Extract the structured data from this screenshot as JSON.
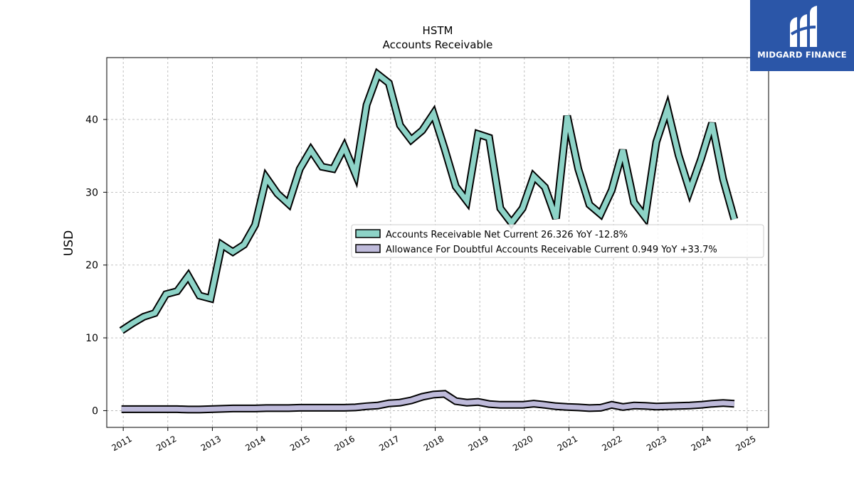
{
  "chart_data": {
    "type": "line",
    "title": "HSTM",
    "subtitle": "Accounts Receivable",
    "ylabel": "USD",
    "xlim": [
      2010.63,
      2025.48
    ],
    "ylim": [
      -2.3,
      48.5
    ],
    "yticks": [
      0,
      10,
      20,
      30,
      40
    ],
    "xticks": [
      "2011",
      "2012",
      "2013",
      "2014",
      "2015",
      "2016",
      "2017",
      "2018",
      "2019",
      "2020",
      "2021",
      "2022",
      "2023",
      "2024",
      "2025"
    ],
    "grid": true,
    "legend_placement": "center-right",
    "series": [
      {
        "name": "Accounts Receivable Net Current",
        "legend_label": "Accounts Receivable Net Current  26.326 YoY -12.8%",
        "color": "#8dd3c7",
        "x": [
          2010.96,
          2011.21,
          2011.46,
          2011.71,
          2011.96,
          2012.21,
          2012.46,
          2012.71,
          2012.96,
          2013.21,
          2013.46,
          2013.71,
          2013.96,
          2014.21,
          2014.46,
          2014.71,
          2014.96,
          2015.21,
          2015.46,
          2015.71,
          2015.96,
          2016.21,
          2016.46,
          2016.71,
          2016.96,
          2017.21,
          2017.46,
          2017.71,
          2017.96,
          2018.21,
          2018.46,
          2018.71,
          2018.96,
          2019.21,
          2019.46,
          2019.71,
          2019.96,
          2020.21,
          2020.46,
          2020.71,
          2020.96,
          2021.21,
          2021.46,
          2021.71,
          2021.96,
          2022.21,
          2022.46,
          2022.71,
          2022.96,
          2023.21,
          2023.46,
          2023.71,
          2023.96,
          2024.21,
          2024.46,
          2024.71
        ],
        "values": [
          11.0,
          12.0,
          12.9,
          13.4,
          16.0,
          16.4,
          18.5,
          15.8,
          15.4,
          22.8,
          21.8,
          22.8,
          25.5,
          32.0,
          29.8,
          28.4,
          33.2,
          35.8,
          33.5,
          33.2,
          36.2,
          32.5,
          42.0,
          46.2,
          45.0,
          39.2,
          37.2,
          38.5,
          40.8,
          36.0,
          30.8,
          28.8,
          38.0,
          37.5,
          27.8,
          25.8,
          27.8,
          32.2,
          30.7,
          26.4,
          40.5,
          33.2,
          28.3,
          27.0,
          30.3,
          35.8,
          28.6,
          26.6,
          36.9,
          41.5,
          35.1,
          30.2,
          34.5,
          39.5,
          31.8,
          26.3
        ]
      },
      {
        "name": "Allowance For Doubtful Accounts Receivable Current",
        "legend_label": "Allowance For Doubtful Accounts Receivable Current  0.949 YoY +33.7%",
        "color": "#bebada",
        "x": [
          2010.96,
          2011.21,
          2011.46,
          2011.71,
          2011.96,
          2012.21,
          2012.46,
          2012.71,
          2012.96,
          2013.21,
          2013.46,
          2013.71,
          2013.96,
          2014.21,
          2014.46,
          2014.71,
          2014.96,
          2015.21,
          2015.46,
          2015.71,
          2015.96,
          2016.21,
          2016.46,
          2016.71,
          2016.96,
          2017.21,
          2017.46,
          2017.71,
          2017.96,
          2018.21,
          2018.46,
          2018.71,
          2018.96,
          2019.21,
          2019.46,
          2019.71,
          2019.96,
          2020.21,
          2020.46,
          2020.71,
          2020.96,
          2021.21,
          2021.46,
          2021.71,
          2021.96,
          2022.21,
          2022.46,
          2022.71,
          2022.96,
          2023.21,
          2023.46,
          2023.71,
          2023.96,
          2024.21,
          2024.46,
          2024.71
        ],
        "values": [
          0.2,
          0.2,
          0.2,
          0.2,
          0.2,
          0.2,
          0.15,
          0.15,
          0.2,
          0.25,
          0.3,
          0.3,
          0.3,
          0.35,
          0.35,
          0.35,
          0.4,
          0.4,
          0.4,
          0.4,
          0.4,
          0.45,
          0.6,
          0.7,
          1.0,
          1.1,
          1.4,
          1.9,
          2.2,
          2.3,
          1.3,
          1.1,
          1.2,
          0.9,
          0.8,
          0.8,
          0.8,
          0.95,
          0.8,
          0.6,
          0.5,
          0.45,
          0.35,
          0.4,
          0.8,
          0.5,
          0.7,
          0.65,
          0.55,
          0.6,
          0.65,
          0.7,
          0.8,
          0.95,
          1.05,
          0.95
        ]
      }
    ]
  },
  "logo": {
    "text": "MIDGARD FINANCE",
    "background": "#2b56a8"
  }
}
